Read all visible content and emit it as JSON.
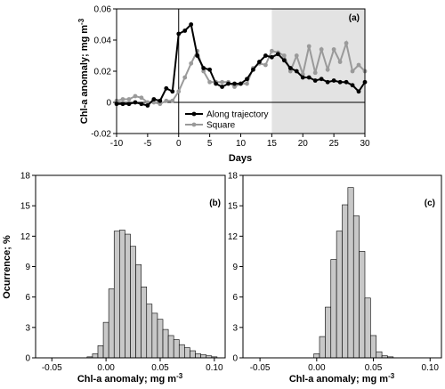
{
  "chart_data": [
    {
      "type": "line",
      "panel_label": "(a)",
      "xlabel": "Days",
      "ylabel": "Chl-a anomaly; mg m",
      "ylabel_sup": "-3",
      "xlim": [
        -10,
        30
      ],
      "ylim": [
        -0.02,
        0.06
      ],
      "xticks": [
        -10,
        -5,
        0,
        5,
        10,
        15,
        20,
        25,
        30
      ],
      "xtick_labels": [
        "-10",
        "-5",
        "0",
        "5",
        "10",
        "15",
        "20",
        "25",
        "30"
      ],
      "yticks": [
        -0.02,
        0,
        0.02,
        0.04,
        0.06
      ],
      "ytick_labels": [
        "-0.02",
        "0",
        "0.02",
        "0.04",
        "0.06"
      ],
      "shaded_region": [
        15,
        30
      ],
      "zero_line": true,
      "vline_x": 0,
      "legend_position": "bottom-center",
      "colors": {
        "along": "#000000",
        "square": "#9a9a9a",
        "shade": "#e3e3e3"
      },
      "x": [
        -10,
        -9,
        -8,
        -7,
        -6,
        -5,
        -4,
        -3,
        -2,
        -1,
        0,
        1,
        2,
        3,
        4,
        5,
        6,
        7,
        8,
        9,
        10,
        11,
        12,
        13,
        14,
        15,
        16,
        17,
        18,
        19,
        20,
        21,
        22,
        23,
        24,
        25,
        26,
        27,
        28,
        29,
        30
      ],
      "series": [
        {
          "name": "Along trajectory",
          "values": [
            -0.001,
            -0.001,
            -0.001,
            0,
            -0.001,
            -0.002,
            0.002,
            0.001,
            0.009,
            0.007,
            0.044,
            0.046,
            0.05,
            0.03,
            0.022,
            0.021,
            0.012,
            0.01,
            0.012,
            0.012,
            0.012,
            0.015,
            0.021,
            0.026,
            0.03,
            0.029,
            0.031,
            0.027,
            0.022,
            0.02,
            0.016,
            0.016,
            0.014,
            0.015,
            0.013,
            0.014,
            0.013,
            0.013,
            0.011,
            0.007,
            0.013
          ]
        },
        {
          "name": "Square",
          "values": [
            0.001,
            0.002,
            0.002,
            0.004,
            0.003,
            0,
            0,
            -0.001,
            0.001,
            0.001,
            0.007,
            0.016,
            0.025,
            0.033,
            0.02,
            0.013,
            0.013,
            0.013,
            0.013,
            0.01,
            0.012,
            0.012,
            0.022,
            0.025,
            0.024,
            0.033,
            0.032,
            0.03,
            0.02,
            0.03,
            0.018,
            0.036,
            0.019,
            0.034,
            0.021,
            0.034,
            0.026,
            0.038,
            0.02,
            0.024,
            0.02
          ]
        }
      ]
    },
    {
      "type": "bar",
      "panel_label": "(b)",
      "xlabel": "Chl-a anomaly; mg m",
      "xlabel_sup": "-3",
      "ylabel": "Ocurrence; %",
      "xlim": [
        -0.065,
        0.11
      ],
      "ylim": [
        0,
        18
      ],
      "xticks": [
        -0.05,
        0,
        0.05,
        0.1
      ],
      "xtick_labels": [
        "-0.05",
        "0.00",
        "0.05",
        "0.10"
      ],
      "yticks": [
        0,
        3,
        6,
        9,
        12,
        15,
        18
      ],
      "ytick_labels": [
        "0",
        "3",
        "6",
        "9",
        "12",
        "15",
        "18"
      ],
      "bin_width": 0.005,
      "bin_start": -0.0175,
      "values": [
        0.1,
        0.4,
        1.2,
        3.5,
        6.8,
        12.5,
        12.6,
        12.2,
        11.0,
        9.2,
        7.0,
        5.3,
        4.4,
        3.8,
        2.8,
        2.2,
        1.8,
        1.3,
        1.0,
        0.7,
        0.4,
        0.3,
        0.2,
        0.1
      ]
    },
    {
      "type": "bar",
      "panel_label": "(c)",
      "xlabel": "Chl-a anomaly; mg m",
      "xlabel_sup": "-3",
      "xlim": [
        -0.065,
        0.11
      ],
      "ylim": [
        0,
        18
      ],
      "xticks": [
        -0.05,
        0,
        0.05,
        0.1
      ],
      "xtick_labels": [
        "-0.05",
        "0.00",
        "0.05",
        "0.10"
      ],
      "yticks": [
        0,
        3,
        6,
        9,
        12,
        15,
        18
      ],
      "ytick_labels": [
        "0",
        "3",
        "6",
        "9",
        "12",
        "15",
        "18"
      ],
      "bin_width": 0.005,
      "bin_start": -0.0025,
      "values": [
        0.4,
        2.1,
        5.0,
        9.7,
        12.5,
        15.1,
        16.8,
        14.0,
        10.5,
        5.9,
        2.2,
        0.6,
        0.2,
        0.1
      ]
    }
  ]
}
